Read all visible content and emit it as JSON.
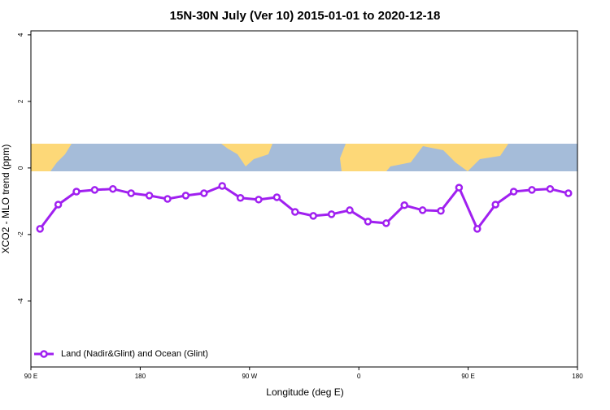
{
  "chart_data": {
    "type": "line",
    "title": "15N-30N July (Ver 10)   2015-01-01 to 2020-12-18",
    "x_label": "Longitude (deg E)",
    "y_label": "XCO2 - MLO trend (ppm)",
    "x": [
      97.5,
      112.5,
      127.5,
      142.5,
      157.5,
      172.5,
      187.5,
      202.5,
      217.5,
      232.5,
      247.5,
      262.5,
      277.5,
      292.5,
      307.5,
      322.5,
      337.5,
      352.5,
      367.5,
      382.5,
      397.5,
      412.5,
      427.5,
      442.5,
      457.5,
      472.5,
      487.5,
      502.5,
      517.5,
      532.5
    ],
    "series": [
      {
        "name": "Land (Nadir&Glint) and Ocean (Glint)",
        "color": "#a020f0",
        "values": [
          -1.83,
          -1.1,
          -0.71,
          -0.66,
          -0.63,
          -0.76,
          -0.83,
          -0.93,
          -0.83,
          -0.76,
          -0.54,
          -0.9,
          -0.95,
          -0.88,
          -1.32,
          -1.44,
          -1.39,
          -1.27,
          -1.61,
          -1.66,
          -1.12,
          -1.27,
          -1.29,
          -0.59,
          -1.83,
          -1.1,
          -0.71,
          -0.66,
          -0.63,
          -0.76
        ]
      }
    ],
    "xlim": [
      90,
      540
    ],
    "xticks": [
      {
        "value": 90,
        "label": "90 E"
      },
      {
        "value": 180,
        "label": "180"
      },
      {
        "value": 270,
        "label": "90 W"
      },
      {
        "value": 360,
        "label": "0"
      },
      {
        "value": 450,
        "label": "90 E"
      },
      {
        "value": 540,
        "label": "180"
      }
    ],
    "ylim": [
      -5.98,
      4.12
    ],
    "yticks": [
      -4,
      -2,
      0,
      2,
      4
    ],
    "legend": "bottom-left"
  }
}
